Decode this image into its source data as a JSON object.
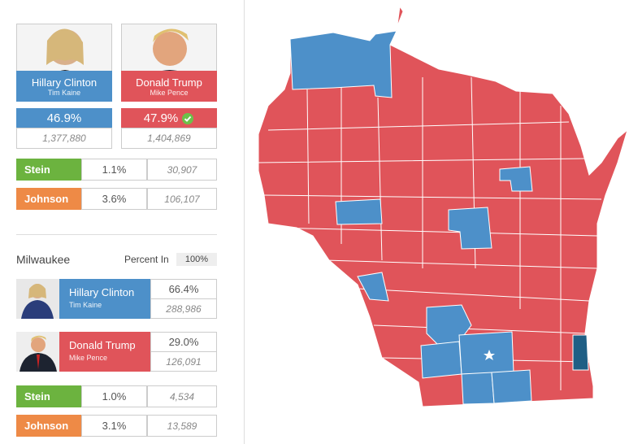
{
  "statewide": {
    "candidates": [
      {
        "name": "Hillary Clinton",
        "running_mate": "Tim Kaine",
        "percent": "46.9%",
        "votes": "1,377,880"
      },
      {
        "name": "Donald Trump",
        "running_mate": "Mike Pence",
        "percent": "47.9%",
        "votes": "1,404,869"
      }
    ],
    "others": [
      {
        "name": "Stein",
        "percent": "1.1%",
        "votes": "30,907"
      },
      {
        "name": "Johnson",
        "percent": "3.6%",
        "votes": "106,107"
      }
    ]
  },
  "county": {
    "name": "Milwaukee",
    "percent_in_label": "Percent In",
    "percent_in": "100%",
    "candidates": [
      {
        "name": "Hillary Clinton",
        "running_mate": "Tim Kaine",
        "percent": "66.4%",
        "votes": "288,986"
      },
      {
        "name": "Donald Trump",
        "running_mate": "Mike Pence",
        "percent": "29.0%",
        "votes": "126,091"
      }
    ],
    "others": [
      {
        "name": "Stein",
        "percent": "1.0%",
        "votes": "4,534"
      },
      {
        "name": "Johnson",
        "percent": "3.1%",
        "votes": "13,589"
      }
    ]
  }
}
